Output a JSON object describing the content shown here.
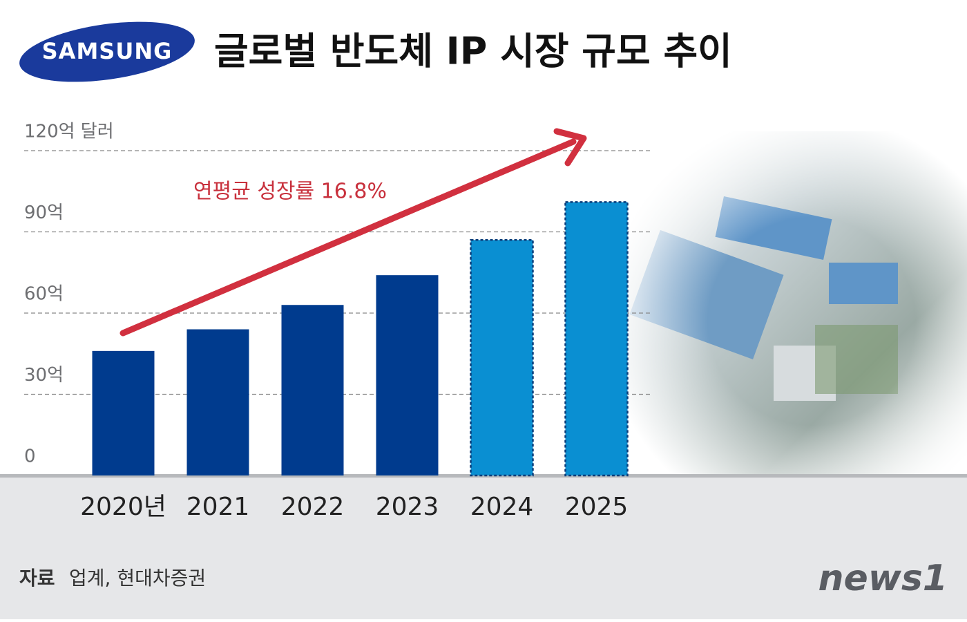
{
  "logo": "SAMSUNG",
  "chart_data": {
    "type": "bar",
    "title": "글로벌 반도체 IP 시장 규모 추이",
    "annotation": "연평균 성장률 16.8%",
    "categories": [
      "2020년",
      "2021",
      "2022",
      "2023",
      "2024",
      "2025"
    ],
    "values": [
      46,
      54,
      63,
      74,
      87,
      101
    ],
    "colors": [
      "#003b8e",
      "#003b8e",
      "#003b8e",
      "#003b8e",
      "#0a8fd2",
      "#0a8fd2"
    ],
    "dashed": [
      false,
      false,
      false,
      false,
      true,
      true
    ],
    "ylim": [
      0,
      120
    ],
    "yticks": [
      0,
      {
        "value": 30,
        "label": "30억"
      },
      {
        "value": 60,
        "label": "60억"
      },
      {
        "value": 90,
        "label": "90억"
      },
      {
        "value": 120,
        "label": "120억 달러"
      }
    ],
    "grid": true
  },
  "source_label": "자료",
  "source": "업계, 현대차증권",
  "brand": "news1"
}
